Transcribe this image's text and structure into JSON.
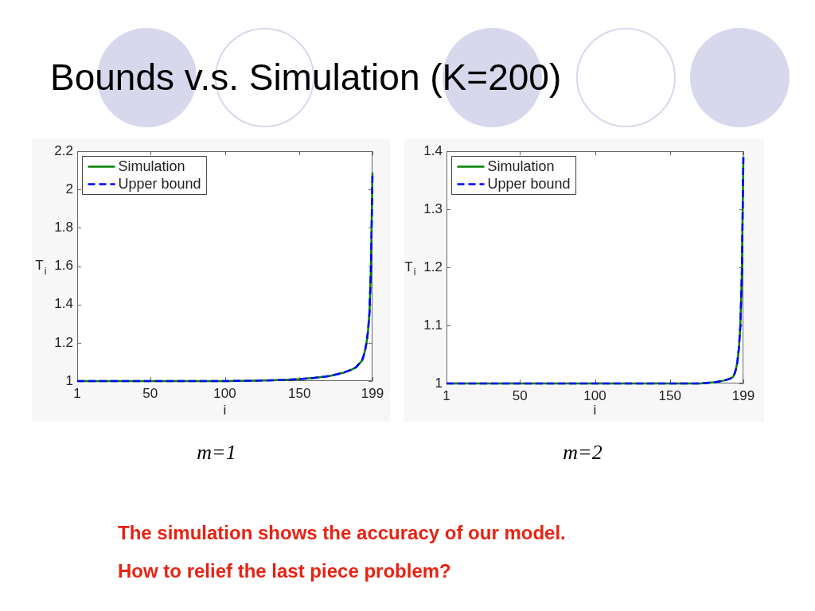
{
  "chart_data": [
    {
      "type": "other",
      "title": "Bounds v.s. Simulation (K=200)"
    },
    {
      "type": "line",
      "xlabel": "i",
      "ylabel": "T$_{i}$",
      "xlim": [
        1,
        199
      ],
      "xticks": [
        1,
        50,
        100,
        150,
        199
      ],
      "ylim": [
        1,
        2.2
      ],
      "yticks": [
        1,
        1.2,
        1.4,
        1.6,
        1.8,
        2,
        2.2
      ],
      "legend": "top left",
      "annotations": [
        "m=1"
      ],
      "x": [
        1,
        25,
        50,
        75,
        100,
        120,
        140,
        150,
        160,
        170,
        175,
        180,
        185,
        188,
        190,
        192,
        193,
        194,
        195,
        196,
        197,
        198,
        199
      ],
      "series": [
        {
          "name": "Simulation",
          "color": "#008000",
          "line_style": "solid",
          "values": [
            1,
            1,
            1,
            1,
            1,
            1.002,
            1.006,
            1.01,
            1.017,
            1.026,
            1.035,
            1.045,
            1.06,
            1.072,
            1.09,
            1.107,
            1.13,
            1.16,
            1.2,
            1.26,
            1.36,
            1.6,
            2.09
          ]
        },
        {
          "name": "Upper bound",
          "color": "#0000ff",
          "line_style": "dashed",
          "values": [
            1,
            1,
            1,
            1,
            1,
            1.002,
            1.006,
            1.01,
            1.017,
            1.026,
            1.035,
            1.045,
            1.06,
            1.072,
            1.09,
            1.107,
            1.13,
            1.16,
            1.2,
            1.26,
            1.36,
            1.6,
            2.09
          ]
        }
      ]
    },
    {
      "type": "line",
      "xlabel": "i",
      "ylabel": "T$_{i}$",
      "xlim": [
        1,
        199
      ],
      "xticks": [
        1,
        50,
        100,
        150,
        199
      ],
      "ylim": [
        1,
        1.4
      ],
      "yticks": [
        1,
        1.1,
        1.2,
        1.3,
        1.4
      ],
      "legend": "top left",
      "annotations": [
        "m=2"
      ],
      "x": [
        1,
        50,
        100,
        150,
        170,
        180,
        186,
        190,
        192,
        193,
        194,
        195,
        196,
        197,
        198,
        199
      ],
      "series": [
        {
          "name": "Simulation",
          "color": "#008000",
          "line_style": "solid",
          "values": [
            1,
            1,
            1,
            1,
            1,
            1.002,
            1.005,
            1.008,
            1.011,
            1.016,
            1.024,
            1.037,
            1.06,
            1.1,
            1.19,
            1.39
          ]
        },
        {
          "name": "Upper bound",
          "color": "#0000ff",
          "line_style": "dashed",
          "values": [
            1,
            1,
            1,
            1,
            1,
            1.002,
            1.005,
            1.008,
            1.011,
            1.016,
            1.024,
            1.037,
            1.06,
            1.1,
            1.19,
            1.39
          ]
        }
      ]
    },
    {
      "type": "other",
      "annotations": [
        "The simulation shows the accuracy of our model.",
        "How to relief the last piece problem?"
      ]
    }
  ]
}
